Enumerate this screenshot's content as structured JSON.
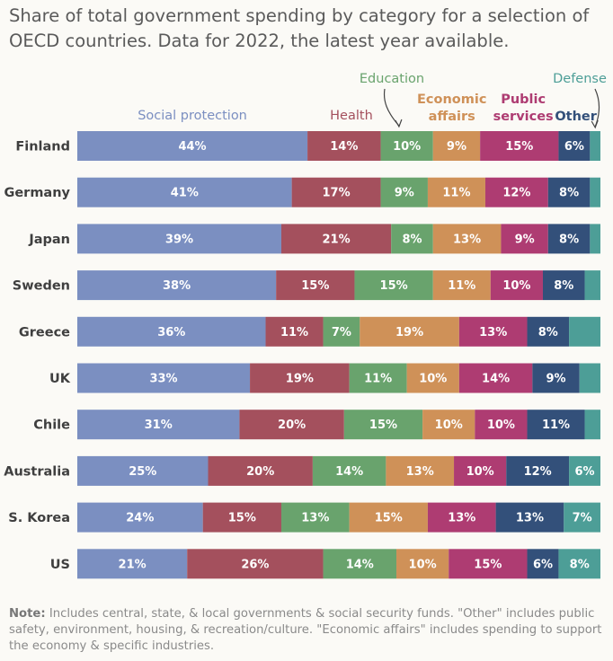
{
  "title": "Share of total government spending by category for a selection of OECD countries. Data for 2022, the latest year available.",
  "note_label": "Note:",
  "note_text": "Includes central, state, & local governments & social security funds. \"Other\" includes public safety, environment, housing, & recreation/culture. \"Economic affairs\" includes spending to support the economy & specific industries.",
  "chart_data": {
    "type": "bar",
    "orientation": "horizontal",
    "stacked": true,
    "unit": "%",
    "categories": [
      "Finland",
      "Germany",
      "Japan",
      "Sweden",
      "Greece",
      "UK",
      "Chile",
      "Australia",
      "S. Korea",
      "US"
    ],
    "series": [
      {
        "name": "Social protection",
        "color": "#7b8fc1",
        "labels": [
          "Social protection"
        ],
        "values": [
          44,
          41,
          39,
          38,
          36,
          33,
          31,
          25,
          24,
          21
        ]
      },
      {
        "name": "Health",
        "color": "#a4505d",
        "labels": [
          "Health"
        ],
        "values": [
          14,
          17,
          21,
          15,
          11,
          19,
          20,
          20,
          15,
          26
        ]
      },
      {
        "name": "Education",
        "color": "#69a36d",
        "labels": [
          "Education"
        ],
        "values": [
          10,
          9,
          8,
          15,
          7,
          11,
          15,
          14,
          13,
          14
        ]
      },
      {
        "name": "Economic affairs",
        "color": "#cf9158",
        "labels": [
          "Economic",
          "affairs"
        ],
        "values": [
          9,
          11,
          13,
          11,
          19,
          10,
          10,
          13,
          15,
          10
        ]
      },
      {
        "name": "Public services",
        "color": "#ae3c72",
        "labels": [
          "Public",
          "services"
        ],
        "values": [
          15,
          12,
          9,
          10,
          13,
          14,
          10,
          10,
          13,
          15
        ]
      },
      {
        "name": "Other",
        "color": "#33507a",
        "labels": [
          "Other"
        ],
        "values": [
          6,
          8,
          8,
          8,
          8,
          9,
          11,
          12,
          13,
          6
        ]
      },
      {
        "name": "Defense",
        "color": "#4d9e97",
        "labels": [
          "Defense"
        ],
        "values": [
          2,
          2,
          2,
          3,
          6,
          4,
          3,
          6,
          7,
          8
        ],
        "value_labels_shown": [
          "",
          "",
          "",
          "",
          "",
          "",
          "",
          "6%",
          "7%",
          "8%"
        ]
      }
    ],
    "xlim": [
      0,
      100
    ],
    "grid": false,
    "legend": "top, series names placed above the first bar"
  }
}
